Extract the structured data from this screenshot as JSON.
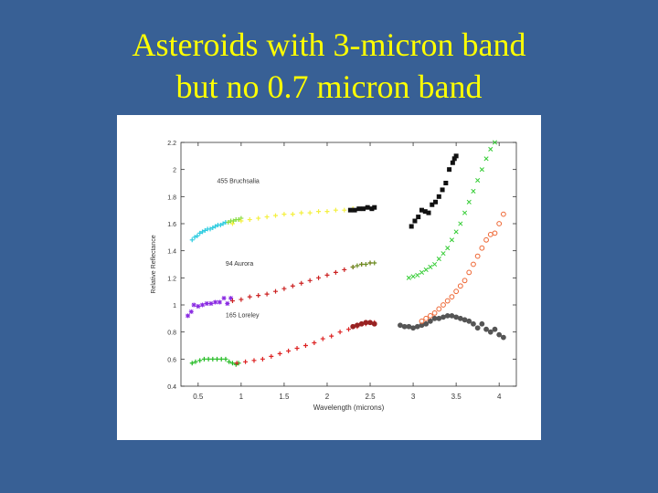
{
  "slide": {
    "title_line1": "Asteroids with 3-micron band",
    "title_line2": "but no 0.7 micron band",
    "background_color": "#386095",
    "title_color": "#ffff00"
  },
  "chart_data": {
    "type": "scatter",
    "title": "",
    "xlabel": "Wavelength (microns)",
    "ylabel": "Relative Reflectance",
    "xlim": [
      0.3,
      4.2
    ],
    "ylim": [
      0.4,
      2.2
    ],
    "xticks": [
      0.5,
      1,
      1.5,
      2,
      2.5,
      3,
      3.5,
      4
    ],
    "xtick_labels": [
      "0.5",
      "1",
      "1.5",
      "2",
      "2.5",
      "3",
      "3.5",
      "4"
    ],
    "yticks": [
      0.4,
      0.6,
      0.8,
      1,
      1.2,
      1.4,
      1.6,
      1.8,
      2,
      2.2
    ],
    "ytick_labels": [
      "0.4",
      "0.6",
      "0.8",
      "1",
      "1.2",
      "1.4",
      "1.6",
      "1.8",
      "2",
      "2.2"
    ],
    "grid": false,
    "annotations": [
      {
        "text": "455 Bruchsalia",
        "x": 0.72,
        "y": 1.9
      },
      {
        "text": "94 Aurora",
        "x": 0.82,
        "y": 1.29
      },
      {
        "text": "165 Loreley",
        "x": 0.82,
        "y": 0.91
      }
    ],
    "series": [
      {
        "color": "#2ecce0",
        "marker": "plus",
        "points": [
          [
            0.43,
            1.48
          ],
          [
            0.46,
            1.5
          ],
          [
            0.49,
            1.51
          ],
          [
            0.52,
            1.53
          ],
          [
            0.55,
            1.54
          ],
          [
            0.58,
            1.55
          ],
          [
            0.61,
            1.56
          ],
          [
            0.64,
            1.56
          ],
          [
            0.67,
            1.57
          ],
          [
            0.7,
            1.58
          ],
          [
            0.73,
            1.59
          ],
          [
            0.76,
            1.59
          ],
          [
            0.79,
            1.6
          ],
          [
            0.82,
            1.61
          ]
        ]
      },
      {
        "color": "#88dd44",
        "marker": "plus",
        "points": [
          [
            0.85,
            1.61
          ],
          [
            0.88,
            1.62
          ],
          [
            0.91,
            1.62
          ],
          [
            0.94,
            1.63
          ],
          [
            0.97,
            1.63
          ],
          [
            1.0,
            1.64
          ]
        ]
      },
      {
        "color": "#f4f040",
        "marker": "plus",
        "points": [
          [
            0.9,
            1.6
          ],
          [
            1.0,
            1.62
          ],
          [
            1.1,
            1.63
          ],
          [
            1.2,
            1.64
          ],
          [
            1.3,
            1.65
          ],
          [
            1.4,
            1.66
          ],
          [
            1.5,
            1.67
          ],
          [
            1.6,
            1.67
          ],
          [
            1.7,
            1.68
          ],
          [
            1.8,
            1.68
          ],
          [
            1.9,
            1.69
          ],
          [
            2.0,
            1.69
          ],
          [
            2.1,
            1.7
          ],
          [
            2.2,
            1.7
          ],
          [
            2.3,
            1.71
          ]
        ]
      },
      {
        "color": "#111111",
        "marker": "square",
        "points": [
          [
            2.27,
            1.7
          ],
          [
            2.32,
            1.7
          ],
          [
            2.37,
            1.71
          ],
          [
            2.42,
            1.71
          ],
          [
            2.47,
            1.72
          ],
          [
            2.52,
            1.71
          ],
          [
            2.55,
            1.72
          ],
          [
            2.98,
            1.58
          ],
          [
            3.02,
            1.62
          ],
          [
            3.06,
            1.65
          ],
          [
            3.1,
            1.7
          ],
          [
            3.14,
            1.69
          ],
          [
            3.18,
            1.68
          ],
          [
            3.22,
            1.74
          ],
          [
            3.26,
            1.76
          ],
          [
            3.3,
            1.8
          ],
          [
            3.34,
            1.85
          ],
          [
            3.38,
            1.9
          ],
          [
            3.42,
            2.0
          ],
          [
            3.46,
            2.05
          ],
          [
            3.48,
            2.08
          ],
          [
            3.5,
            2.1
          ]
        ]
      },
      {
        "color": "#8a2be2",
        "marker": "asterisk",
        "points": [
          [
            0.38,
            0.92
          ],
          [
            0.42,
            0.95
          ],
          [
            0.45,
            1.0
          ],
          [
            0.5,
            0.99
          ],
          [
            0.55,
            1.0
          ],
          [
            0.6,
            1.01
          ],
          [
            0.65,
            1.01
          ],
          [
            0.7,
            1.02
          ],
          [
            0.75,
            1.02
          ],
          [
            0.8,
            1.05
          ],
          [
            0.84,
            1.01
          ],
          [
            0.88,
            1.05
          ]
        ]
      },
      {
        "color": "#cc2222",
        "marker": "plus",
        "points": [
          [
            0.9,
            1.03
          ],
          [
            1.0,
            1.04
          ],
          [
            1.1,
            1.06
          ],
          [
            1.2,
            1.07
          ],
          [
            1.3,
            1.08
          ],
          [
            1.4,
            1.1
          ],
          [
            1.5,
            1.12
          ],
          [
            1.6,
            1.14
          ],
          [
            1.7,
            1.16
          ],
          [
            1.8,
            1.18
          ],
          [
            1.9,
            1.2
          ],
          [
            2.0,
            1.22
          ],
          [
            2.1,
            1.24
          ],
          [
            2.2,
            1.26
          ],
          [
            2.3,
            1.28
          ],
          [
            2.4,
            1.3
          ],
          [
            2.5,
            1.31
          ]
        ]
      },
      {
        "color": "#6b8e23",
        "marker": "plus",
        "points": [
          [
            2.3,
            1.28
          ],
          [
            2.35,
            1.29
          ],
          [
            2.4,
            1.3
          ],
          [
            2.45,
            1.3
          ],
          [
            2.5,
            1.31
          ],
          [
            2.55,
            1.31
          ]
        ]
      },
      {
        "color": "#33cc33",
        "marker": "x",
        "points": [
          [
            2.95,
            1.2
          ],
          [
            3.0,
            1.21
          ],
          [
            3.05,
            1.22
          ],
          [
            3.1,
            1.24
          ],
          [
            3.15,
            1.26
          ],
          [
            3.2,
            1.28
          ],
          [
            3.25,
            1.3
          ],
          [
            3.3,
            1.34
          ],
          [
            3.35,
            1.38
          ],
          [
            3.4,
            1.42
          ],
          [
            3.45,
            1.48
          ],
          [
            3.5,
            1.54
          ],
          [
            3.55,
            1.6
          ],
          [
            3.6,
            1.68
          ],
          [
            3.65,
            1.76
          ],
          [
            3.7,
            1.84
          ],
          [
            3.75,
            1.92
          ],
          [
            3.8,
            2.0
          ],
          [
            3.85,
            2.08
          ],
          [
            3.9,
            2.15
          ],
          [
            3.95,
            2.2
          ]
        ]
      },
      {
        "color": "#22bb22",
        "marker": "plus",
        "points": [
          [
            0.43,
            0.57
          ],
          [
            0.47,
            0.58
          ],
          [
            0.52,
            0.59
          ],
          [
            0.57,
            0.6
          ],
          [
            0.62,
            0.6
          ],
          [
            0.67,
            0.6
          ],
          [
            0.72,
            0.6
          ],
          [
            0.77,
            0.6
          ],
          [
            0.82,
            0.6
          ],
          [
            0.86,
            0.58
          ],
          [
            0.9,
            0.57
          ],
          [
            0.94,
            0.56
          ],
          [
            0.97,
            0.57
          ]
        ]
      },
      {
        "color": "#dd2222",
        "marker": "plus",
        "points": [
          [
            0.95,
            0.57
          ],
          [
            1.05,
            0.58
          ],
          [
            1.15,
            0.59
          ],
          [
            1.25,
            0.6
          ],
          [
            1.35,
            0.62
          ],
          [
            1.45,
            0.64
          ],
          [
            1.55,
            0.66
          ],
          [
            1.65,
            0.68
          ],
          [
            1.75,
            0.7
          ],
          [
            1.85,
            0.72
          ],
          [
            1.95,
            0.75
          ],
          [
            2.05,
            0.77
          ],
          [
            2.15,
            0.8
          ],
          [
            2.25,
            0.82
          ],
          [
            2.35,
            0.84
          ],
          [
            2.45,
            0.86
          ],
          [
            2.55,
            0.87
          ]
        ]
      },
      {
        "color": "#992222",
        "marker": "circle",
        "points": [
          [
            2.3,
            0.84
          ],
          [
            2.35,
            0.85
          ],
          [
            2.4,
            0.86
          ],
          [
            2.45,
            0.87
          ],
          [
            2.5,
            0.87
          ],
          [
            2.55,
            0.86
          ]
        ]
      },
      {
        "color": "#555555",
        "marker": "circle",
        "points": [
          [
            2.85,
            0.85
          ],
          [
            2.9,
            0.84
          ],
          [
            2.95,
            0.84
          ],
          [
            3.0,
            0.83
          ],
          [
            3.05,
            0.84
          ],
          [
            3.1,
            0.85
          ],
          [
            3.15,
            0.86
          ],
          [
            3.2,
            0.88
          ],
          [
            3.25,
            0.9
          ],
          [
            3.3,
            0.9
          ],
          [
            3.35,
            0.91
          ],
          [
            3.4,
            0.92
          ],
          [
            3.45,
            0.92
          ],
          [
            3.5,
            0.91
          ],
          [
            3.55,
            0.9
          ],
          [
            3.6,
            0.89
          ],
          [
            3.65,
            0.88
          ],
          [
            3.7,
            0.86
          ],
          [
            3.75,
            0.83
          ],
          [
            3.8,
            0.86
          ],
          [
            3.85,
            0.82
          ],
          [
            3.9,
            0.8
          ],
          [
            3.95,
            0.82
          ],
          [
            4.0,
            0.78
          ],
          [
            4.05,
            0.76
          ]
        ]
      },
      {
        "color": "#ee6633",
        "marker": "circle",
        "points": [
          [
            3.1,
            0.88
          ],
          [
            3.15,
            0.9
          ],
          [
            3.2,
            0.92
          ],
          [
            3.25,
            0.94
          ],
          [
            3.3,
            0.97
          ],
          [
            3.35,
            1.0
          ],
          [
            3.4,
            1.03
          ],
          [
            3.45,
            1.06
          ],
          [
            3.5,
            1.1
          ],
          [
            3.55,
            1.14
          ],
          [
            3.6,
            1.18
          ],
          [
            3.65,
            1.24
          ],
          [
            3.7,
            1.3
          ],
          [
            3.75,
            1.36
          ],
          [
            3.8,
            1.42
          ],
          [
            3.85,
            1.48
          ],
          [
            3.9,
            1.52
          ],
          [
            3.95,
            1.53
          ],
          [
            4.0,
            1.6
          ],
          [
            4.05,
            1.67
          ]
        ]
      }
    ]
  }
}
